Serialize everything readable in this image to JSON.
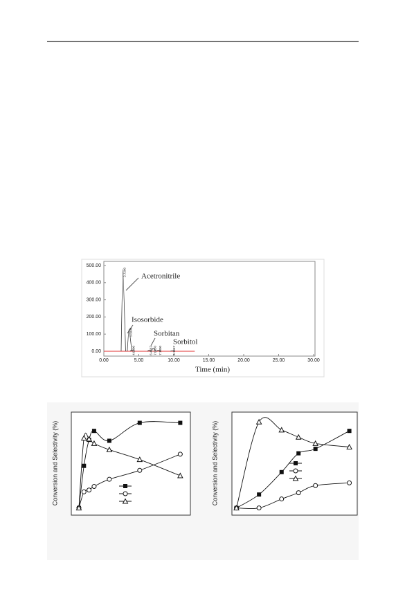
{
  "chromatogram": {
    "type": "line",
    "x_label": "Time (min)",
    "xlim": [
      0,
      30
    ],
    "ylim": [
      0,
      500
    ],
    "xticks": [
      {
        "value": 0,
        "label": "0.00"
      },
      {
        "value": 5,
        "label": "5.00"
      },
      {
        "value": 10,
        "label": "10.00"
      },
      {
        "value": 15,
        "label": "15.00"
      },
      {
        "value": 20,
        "label": "20.00"
      },
      {
        "value": 25,
        "label": "25.00"
      },
      {
        "value": 30,
        "label": "30.00"
      }
    ],
    "yticks": [
      {
        "value": 0,
        "label": "0.00"
      },
      {
        "value": 100,
        "label": "100.00"
      },
      {
        "value": 200,
        "label": "200.00"
      },
      {
        "value": 300,
        "label": "300.00"
      },
      {
        "value": 400,
        "label": "400.00"
      },
      {
        "value": 500,
        "label": "500.00"
      }
    ],
    "baseline_color": "#e03030",
    "trace_color": "#333333",
    "peaks": [
      {
        "time": 2.72,
        "height": 480,
        "label": "2.7200"
      },
      {
        "time": 3.6,
        "height": 130,
        "label": "3.6000"
      },
      {
        "time": 4.0,
        "height": 8,
        "label": "4.0000"
      },
      {
        "time": 6.4667,
        "height": 6,
        "label": "6.4667"
      },
      {
        "time": 7.055,
        "height": 18,
        "label": "7.0550"
      },
      {
        "time": 7.78,
        "height": 6,
        "label": "7.7800"
      },
      {
        "time": 9.7667,
        "height": 3,
        "label": "9.7667"
      }
    ],
    "annotations": [
      "Acetronitrile",
      "Isosorbide",
      "Sorbitan",
      "Sorbitol"
    ]
  },
  "conversion_charts": [
    {
      "type": "line",
      "y_label": "Conversion and Selectivity (%)",
      "xlim": [
        -0.75,
        11
      ],
      "ylim": [
        -8,
        107
      ],
      "x": [
        0,
        0.5,
        1,
        1.5,
        3,
        6,
        10
      ],
      "series": [
        {
          "marker": "square",
          "color": "#111111",
          "values": [
            0,
            47,
            76,
            86,
            75,
            95,
            95
          ]
        },
        {
          "marker": "circle",
          "color": "#111111",
          "values": [
            0,
            18,
            20,
            24,
            32,
            42,
            60
          ]
        },
        {
          "marker": "triangle",
          "color": "#111111",
          "values": [
            0,
            78,
            77,
            72,
            65,
            54,
            36
          ]
        }
      ]
    },
    {
      "type": "line",
      "y_label": "Conversion and Selectivity (%)",
      "xlim": [
        -0.4,
        10.7
      ],
      "ylim": [
        -8,
        107
      ],
      "x": [
        0,
        2,
        4,
        5.5,
        7,
        10
      ],
      "series": [
        {
          "marker": "square",
          "color": "#111111",
          "values": [
            0,
            15,
            40,
            61,
            66,
            86
          ]
        },
        {
          "marker": "circle",
          "color": "#111111",
          "values": [
            0,
            0,
            10,
            17,
            25,
            28
          ]
        },
        {
          "marker": "triangle",
          "color": "#111111",
          "values": [
            0,
            96,
            87,
            79,
            72,
            68
          ]
        }
      ]
    }
  ]
}
